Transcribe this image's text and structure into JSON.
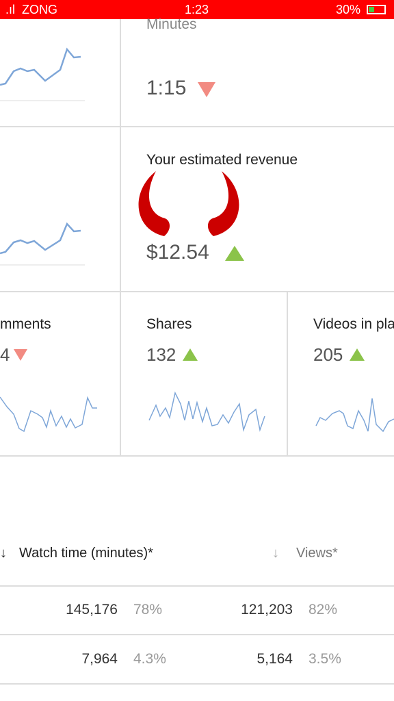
{
  "status_bar": {
    "carrier": "ZONG",
    "time": "1:23",
    "battery": "30%"
  },
  "cards": [
    {
      "title": "Minutes",
      "value": "1:15"
    },
    {
      "title": "Your estimated revenue",
      "value": "$12.54"
    },
    {
      "title": "mments",
      "value": "4"
    },
    {
      "title": "Shares",
      "value": "132"
    },
    {
      "title": "Videos in pla",
      "value": "205"
    }
  ],
  "table": {
    "headers": [
      "Watch time (minutes)*",
      "Views*"
    ],
    "rows": [
      [
        "145,176",
        "78%",
        "121,203",
        "82%"
      ],
      [
        "7,964",
        "4.3%",
        "5,164",
        "3.5%"
      ]
    ]
  }
}
